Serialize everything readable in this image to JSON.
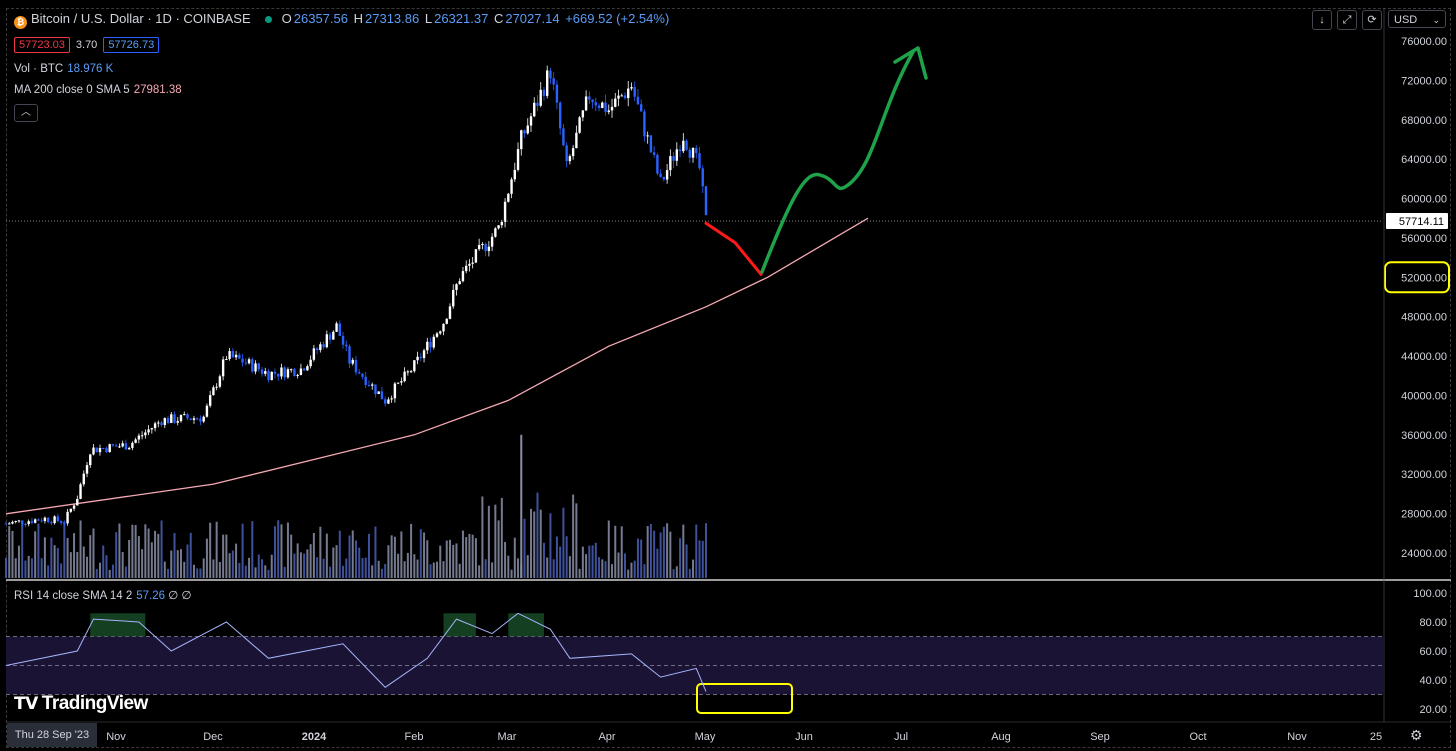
{
  "header": {
    "coin_icon": "bitcoin-icon",
    "symbol": "Bitcoin / U.S. Dollar · 1D · COINBASE",
    "ohlc": {
      "o_label": "O",
      "o": "26357.56",
      "h_label": "H",
      "h": "27313.86",
      "l_label": "L",
      "l": "26321.37",
      "c_label": "C",
      "c": "27027.14",
      "change": "+669.52 (+2.54%)"
    },
    "bid": "57723.03",
    "spread": "3.70",
    "ask": "57726.73",
    "vol_label": "Vol · BTC",
    "vol_value": "18.976 K",
    "ma_label": "MA 200 close 0 SMA 5",
    "ma_value": "27981.38",
    "collapse_icon": "chevron-up-icon"
  },
  "toolbar": {
    "download_icon": "download-icon",
    "fullscreen_icon": "fullscreen-icon",
    "refresh_icon": "refresh-icon",
    "currency": "USD"
  },
  "rsi": {
    "label": "RSI 14 close SMA 14 2",
    "value": "57.26",
    "extra": "∅ ∅",
    "ticks": [
      "100.00",
      "80.00",
      "60.00",
      "40.00",
      "20.00"
    ]
  },
  "branding": {
    "name": "TradingView"
  },
  "crosshair_date": "Thu 28 Sep '23",
  "last_price_label": "57714.11",
  "colors": {
    "up": "#ffffff",
    "down": "#2962ff",
    "ma": "#f7a9b4",
    "rsi_line": "#a5b4fc",
    "annotation_red": "#ff1a1a",
    "annotation_green": "#1fa34a",
    "highlight": "#ffff00"
  },
  "chart_data": {
    "type": "candlestick",
    "y_ticks": [
      "76000.00",
      "72000.00",
      "68000.00",
      "64000.00",
      "60000.00",
      "56000.00",
      "52000.00",
      "48000.00",
      "44000.00",
      "40000.00",
      "36000.00",
      "32000.00",
      "28000.00",
      "24000.00"
    ],
    "x_ticks": [
      "Nov",
      "Dec",
      "2024",
      "Feb",
      "Mar",
      "Apr",
      "May",
      "Jun",
      "Jul",
      "Aug",
      "Sep",
      "Oct",
      "Nov",
      "25"
    ],
    "ylim": [
      22000,
      78000
    ],
    "price_path": [
      [
        "2023-09-28",
        27000
      ],
      [
        "2023-10-10",
        27500
      ],
      [
        "2023-10-16",
        27200
      ],
      [
        "2023-10-20",
        29700
      ],
      [
        "2023-10-24",
        34500
      ],
      [
        "2023-11-05",
        35000
      ],
      [
        "2023-11-15",
        37500
      ],
      [
        "2023-11-28",
        37800
      ],
      [
        "2023-12-05",
        44000
      ],
      [
        "2023-12-10",
        43500
      ],
      [
        "2023-12-18",
        42200
      ],
      [
        "2023-12-28",
        42700
      ],
      [
        "2024-01-08",
        47000
      ],
      [
        "2024-01-12",
        43500
      ],
      [
        "2024-01-23",
        39500
      ],
      [
        "2024-02-01",
        43000
      ],
      [
        "2024-02-10",
        47500
      ],
      [
        "2024-02-15",
        52000
      ],
      [
        "2024-02-27",
        57000
      ],
      [
        "2024-03-05",
        66000
      ],
      [
        "2024-03-14",
        73000
      ],
      [
        "2024-03-19",
        63000
      ],
      [
        "2024-03-26",
        70500
      ],
      [
        "2024-04-01",
        69000
      ],
      [
        "2024-04-08",
        71500
      ],
      [
        "2024-04-17",
        61500
      ],
      [
        "2024-04-24",
        66500
      ],
      [
        "2024-04-29",
        63000
      ],
      [
        "2024-05-01",
        57714
      ]
    ],
    "ma_path": [
      [
        "2023-09-28",
        27981
      ],
      [
        "2023-12-01",
        31000
      ],
      [
        "2024-01-01",
        33500
      ],
      [
        "2024-02-01",
        36000
      ],
      [
        "2024-03-01",
        39500
      ],
      [
        "2024-04-01",
        45000
      ],
      [
        "2024-05-01",
        49000
      ],
      [
        "2024-05-20",
        52000
      ],
      [
        "2024-06-20",
        58000
      ]
    ],
    "last_price": 57714.11,
    "highlighted_level": 52000,
    "projection_red": [
      [
        "2024-05-01",
        57500
      ],
      [
        "2024-05-10",
        55500
      ],
      [
        "2024-05-18",
        52300
      ]
    ],
    "projection_green": [
      [
        "2024-05-18",
        52300
      ],
      [
        "2024-06-01",
        61000
      ],
      [
        "2024-06-15",
        61000
      ],
      [
        "2024-07-10",
        75000
      ]
    ],
    "volume_peaks": [
      [
        "2024-03-05",
        36000
      ]
    ],
    "rsi_path": [
      [
        "2023-09-28",
        50
      ],
      [
        "2023-10-20",
        60
      ],
      [
        "2023-10-25",
        82
      ],
      [
        "2023-11-08",
        80
      ],
      [
        "2023-11-18",
        60
      ],
      [
        "2023-12-05",
        80
      ],
      [
        "2023-12-18",
        55
      ],
      [
        "2024-01-10",
        65
      ],
      [
        "2024-01-23",
        35
      ],
      [
        "2024-02-05",
        55
      ],
      [
        "2024-02-14",
        82
      ],
      [
        "2024-02-25",
        72
      ],
      [
        "2024-03-04",
        86
      ],
      [
        "2024-03-14",
        75
      ],
      [
        "2024-03-20",
        55
      ],
      [
        "2024-04-08",
        58
      ],
      [
        "2024-04-17",
        42
      ],
      [
        "2024-04-28",
        48
      ],
      [
        "2024-05-01",
        32
      ]
    ],
    "rsi_levels": [
      70,
      50,
      30
    ],
    "rsi_ylim": [
      12,
      100
    ]
  }
}
